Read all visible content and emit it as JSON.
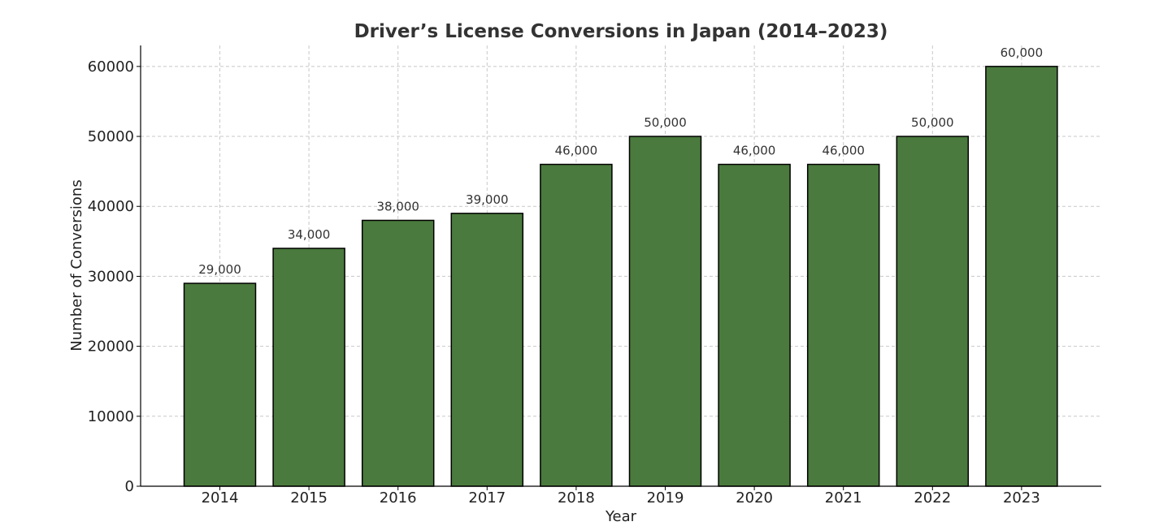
{
  "chart_data": {
    "type": "bar",
    "title": "Driver’s License Conversions in Japan (2014–2023)",
    "xlabel": "Year",
    "ylabel": "Number of Conversions",
    "categories": [
      "2014",
      "2015",
      "2016",
      "2017",
      "2018",
      "2019",
      "2020",
      "2021",
      "2022",
      "2023"
    ],
    "values": [
      29000,
      34000,
      38000,
      39000,
      46000,
      50000,
      46000,
      46000,
      50000,
      60000
    ],
    "data_labels": [
      "29,000",
      "34,000",
      "38,000",
      "39,000",
      "46,000",
      "50,000",
      "46,000",
      "46,000",
      "50,000",
      "60,000"
    ],
    "yticks": [
      0,
      10000,
      20000,
      30000,
      40000,
      50000,
      60000
    ],
    "ylim": [
      0,
      63000
    ],
    "grid": true,
    "colors": {
      "bar": "#4a7a3d",
      "bar_edge": "#000000",
      "grid": "#c8c8c8"
    }
  }
}
